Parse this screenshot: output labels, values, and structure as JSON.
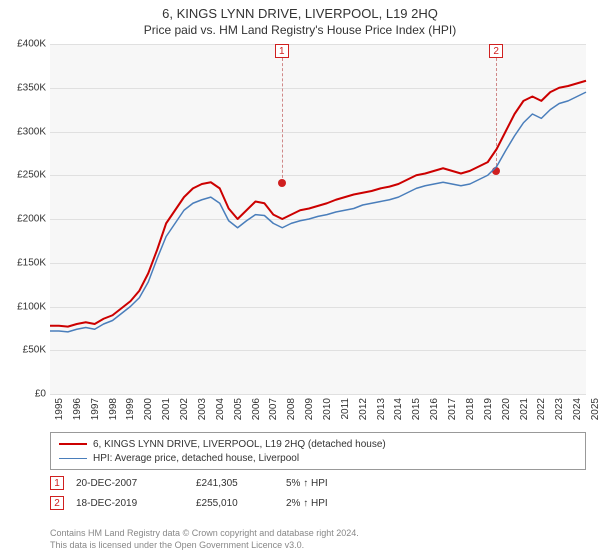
{
  "title_main": "6, KINGS LYNN DRIVE, LIVERPOOL, L19 2HQ",
  "title_sub": "Price paid vs. HM Land Registry's House Price Index (HPI)",
  "chart": {
    "type": "line",
    "background_color": "#f7f7f7",
    "grid_color": "#e0e0e0",
    "text_color": "#333333",
    "axis_fontsize": 10,
    "title_fontsize": 13,
    "ylim": [
      0,
      400000
    ],
    "ytick_step": 50000,
    "yticks": [
      "£0",
      "£50K",
      "£100K",
      "£150K",
      "£200K",
      "£250K",
      "£300K",
      "£350K",
      "£400K"
    ],
    "xlim": [
      1995,
      2025
    ],
    "xticks": [
      1995,
      1996,
      1997,
      1998,
      1999,
      2000,
      2001,
      2002,
      2003,
      2004,
      2005,
      2006,
      2007,
      2008,
      2009,
      2010,
      2011,
      2012,
      2013,
      2014,
      2015,
      2016,
      2017,
      2018,
      2019,
      2020,
      2021,
      2022,
      2023,
      2024,
      2025
    ],
    "series": [
      {
        "name": "6, KINGS LYNN DRIVE, LIVERPOOL, L19 2HQ (detached house)",
        "color": "#cc0000",
        "line_width": 2,
        "y": [
          78,
          78,
          77,
          80,
          82,
          80,
          86,
          90,
          98,
          106,
          118,
          138,
          165,
          195,
          210,
          225,
          235,
          240,
          242,
          235,
          212,
          200,
          210,
          220,
          218,
          205,
          200,
          205,
          210,
          212,
          215,
          218,
          222,
          225,
          228,
          230,
          232,
          235,
          237,
          240,
          245,
          250,
          252,
          255,
          258,
          255,
          252,
          255,
          260,
          265,
          280,
          300,
          320,
          335,
          340,
          335,
          345,
          350,
          352,
          355,
          358
        ]
      },
      {
        "name": "HPI: Average price, detached house, Liverpool",
        "color": "#4a7ebb",
        "line_width": 1.5,
        "y": [
          72,
          72,
          71,
          74,
          76,
          74,
          80,
          84,
          92,
          100,
          110,
          128,
          155,
          180,
          195,
          210,
          218,
          222,
          225,
          218,
          198,
          190,
          198,
          205,
          204,
          195,
          190,
          195,
          198,
          200,
          203,
          205,
          208,
          210,
          212,
          216,
          218,
          220,
          222,
          225,
          230,
          235,
          238,
          240,
          242,
          240,
          238,
          240,
          245,
          250,
          260,
          278,
          295,
          310,
          320,
          315,
          325,
          332,
          335,
          340,
          345
        ]
      }
    ],
    "markers": [
      {
        "n": 1,
        "x": 2007.97,
        "y": 241305
      },
      {
        "n": 2,
        "x": 2019.97,
        "y": 255010
      }
    ],
    "marker_box_color": "#d02020",
    "marker_line_color": "#d08888"
  },
  "legend": {
    "border_color": "#999999",
    "fontsize": 10,
    "items": [
      {
        "color": "#cc0000",
        "width": 2,
        "label": "6, KINGS LYNN DRIVE, LIVERPOOL, L19 2HQ (detached house)"
      },
      {
        "color": "#4a7ebb",
        "width": 1.5,
        "label": "HPI: Average price, detached house, Liverpool"
      }
    ]
  },
  "sales": [
    {
      "n": 1,
      "date": "20-DEC-2007",
      "price": "£241,305",
      "delta": "5% ↑ HPI"
    },
    {
      "n": 2,
      "date": "18-DEC-2019",
      "price": "£255,010",
      "delta": "2% ↑ HPI"
    }
  ],
  "footer": {
    "line1": "Contains HM Land Registry data © Crown copyright and database right 2024.",
    "line2": "This data is licensed under the Open Government Licence v3.0.",
    "color": "#888888",
    "fontsize": 9
  }
}
